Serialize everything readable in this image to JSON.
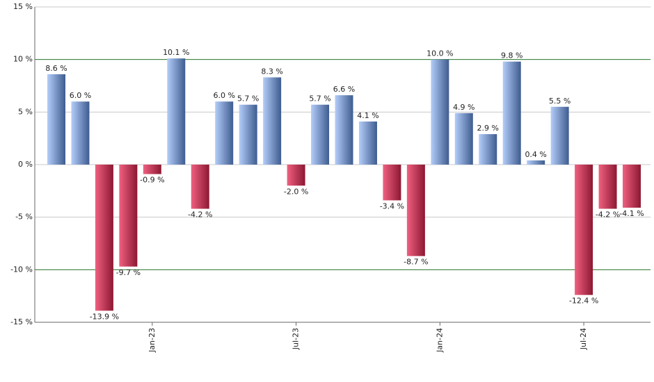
{
  "chart_data": {
    "type": "bar",
    "categories": [
      null,
      null,
      null,
      null,
      "Jan-23",
      null,
      null,
      null,
      null,
      null,
      "Jul-23",
      null,
      null,
      null,
      null,
      null,
      "Jan-24",
      null,
      null,
      null,
      null,
      null,
      "Jul-24",
      null,
      null
    ],
    "values": [
      8.6,
      6.0,
      -13.9,
      -9.7,
      -0.9,
      10.1,
      -4.2,
      6.0,
      5.7,
      8.3,
      -2.0,
      5.7,
      6.6,
      4.1,
      -3.4,
      -8.7,
      10.0,
      4.9,
      2.9,
      9.8,
      0.4,
      5.5,
      -12.4,
      -4.2,
      -4.1
    ],
    "value_labels": [
      "8.6 %",
      "6.0 %",
      "-13.9 %",
      "-9.7 %",
      "-0.9 %",
      "10.1 %",
      "-4.2 %",
      "6.0 %",
      "5.7 %",
      "8.3 %",
      "-2.0 %",
      "5.7 %",
      "6.6 %",
      "4.1 %",
      "-3.4 %",
      "-8.7 %",
      "10.0 %",
      "4.9 %",
      "2.9 %",
      "9.8 %",
      "0.4 %",
      "5.5 %",
      "-12.4 %",
      "-4.2 %",
      "-4.1 %"
    ],
    "ylim": [
      -15,
      15
    ],
    "yticks": [
      {
        "value": -15,
        "label": "-15 %"
      },
      {
        "value": -10,
        "label": "-10 %"
      },
      {
        "value": -5,
        "label": "-5 %"
      },
      {
        "value": 0,
        "label": "0 %"
      },
      {
        "value": 5,
        "label": "5 %"
      },
      {
        "value": 10,
        "label": "10 %"
      },
      {
        "value": 15,
        "label": "15 %"
      }
    ],
    "grid": true,
    "grid_color": "#c8c8c8",
    "reference_lines": [
      10,
      -10
    ],
    "reference_color": "#2e7d32",
    "positive_gradient": [
      "#b4cdfa",
      "#3e5c8f"
    ],
    "negative_gradient": [
      "#f06080",
      "#8c1832"
    ]
  }
}
